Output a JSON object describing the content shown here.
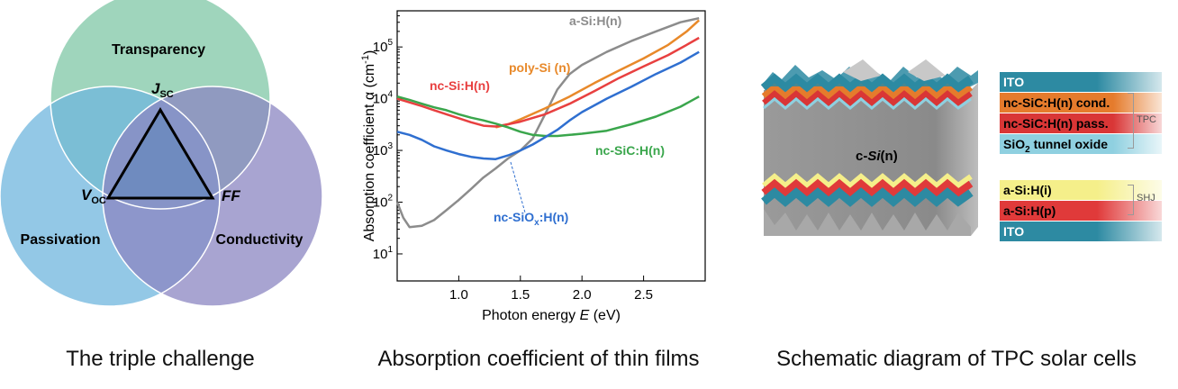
{
  "venn": {
    "circles": [
      {
        "label": "Transparency",
        "color": "#7fc7a6"
      },
      {
        "label": "Passivation",
        "color": "#6fb6dd"
      },
      {
        "label": "Conductivity",
        "color": "#8b86c2"
      }
    ],
    "vertices": {
      "top": "J",
      "top_sub": "SC",
      "left": "V",
      "left_sub": "OC",
      "right": "FF"
    },
    "caption": "The triple challenge"
  },
  "chart_data": {
    "type": "line",
    "xlabel_pre": "Photon energy ",
    "xlabel_var": "E",
    "xlabel_post": " (eV)",
    "ylabel": "Absorption coefficient α (cm",
    "ylabel_sup": "-1",
    "ylabel_end": ")",
    "xlim": [
      0.5,
      3.0
    ],
    "ylim": [
      3,
      500000
    ],
    "ylog": true,
    "xticks": [
      "1.0",
      "1.5",
      "2.0",
      "2.5"
    ],
    "xtick_values": [
      1.0,
      1.5,
      2.0,
      2.5
    ],
    "yticks": [
      {
        "value": 10,
        "base": "10",
        "exp": "1"
      },
      {
        "value": 100,
        "base": "10",
        "exp": "2"
      },
      {
        "value": 1000,
        "base": "10",
        "exp": "3"
      },
      {
        "value": 10000,
        "base": "10",
        "exp": "4"
      },
      {
        "value": 100000,
        "base": "10",
        "exp": "5"
      }
    ],
    "series": [
      {
        "name": "a-Si:H(n)",
        "color": "#8c8c8c",
        "points": [
          [
            0.5,
            100
          ],
          [
            0.55,
            50
          ],
          [
            0.6,
            33
          ],
          [
            0.7,
            35
          ],
          [
            0.8,
            45
          ],
          [
            0.9,
            70
          ],
          [
            1.0,
            110
          ],
          [
            1.1,
            180
          ],
          [
            1.2,
            300
          ],
          [
            1.3,
            450
          ],
          [
            1.4,
            700
          ],
          [
            1.5,
            1000
          ],
          [
            1.6,
            1700
          ],
          [
            1.7,
            5000
          ],
          [
            1.8,
            15000
          ],
          [
            1.9,
            30000
          ],
          [
            2.0,
            45000
          ],
          [
            2.2,
            80000
          ],
          [
            2.4,
            130000
          ],
          [
            2.6,
            200000
          ],
          [
            2.8,
            300000
          ],
          [
            2.95,
            360000
          ]
        ]
      },
      {
        "name": "poly-Si (n)",
        "color": "#e8892a",
        "points": [
          [
            1.3,
            2800
          ],
          [
            1.4,
            3200
          ],
          [
            1.5,
            4000
          ],
          [
            1.7,
            6500
          ],
          [
            1.9,
            11000
          ],
          [
            2.1,
            20000
          ],
          [
            2.3,
            35000
          ],
          [
            2.5,
            60000
          ],
          [
            2.7,
            110000
          ],
          [
            2.85,
            200000
          ],
          [
            2.95,
            330000
          ]
        ]
      },
      {
        "name": "nc-Si:H(n)",
        "color": "#e84040",
        "points": [
          [
            0.5,
            10000
          ],
          [
            0.6,
            8500
          ],
          [
            0.7,
            7200
          ],
          [
            0.8,
            6000
          ],
          [
            0.9,
            5000
          ],
          [
            1.0,
            4200
          ],
          [
            1.1,
            3500
          ],
          [
            1.2,
            3000
          ],
          [
            1.3,
            2900
          ],
          [
            1.4,
            3200
          ],
          [
            1.5,
            3600
          ],
          [
            1.7,
            5000
          ],
          [
            1.9,
            8000
          ],
          [
            2.1,
            14000
          ],
          [
            2.3,
            25000
          ],
          [
            2.5,
            42000
          ],
          [
            2.7,
            70000
          ],
          [
            2.85,
            110000
          ],
          [
            2.95,
            150000
          ]
        ]
      },
      {
        "name": "nc-SiC:H(n)",
        "color": "#3aa64c",
        "points": [
          [
            0.5,
            11000
          ],
          [
            0.6,
            9500
          ],
          [
            0.7,
            8000
          ],
          [
            0.8,
            6800
          ],
          [
            0.9,
            6000
          ],
          [
            1.0,
            5000
          ],
          [
            1.1,
            4300
          ],
          [
            1.2,
            3800
          ],
          [
            1.3,
            3300
          ],
          [
            1.4,
            2800
          ],
          [
            1.5,
            2300
          ],
          [
            1.6,
            2000
          ],
          [
            1.7,
            1900
          ],
          [
            1.8,
            1900
          ],
          [
            1.9,
            2000
          ],
          [
            2.0,
            2100
          ],
          [
            2.2,
            2400
          ],
          [
            2.4,
            3200
          ],
          [
            2.6,
            4500
          ],
          [
            2.8,
            7000
          ],
          [
            2.95,
            11000
          ]
        ]
      },
      {
        "name": "nc-SiO",
        "name_sub": "x",
        "name_post": ":H(n)",
        "color": "#2f6fd0",
        "points": [
          [
            0.5,
            2300
          ],
          [
            0.6,
            2000
          ],
          [
            0.7,
            1600
          ],
          [
            0.8,
            1200
          ],
          [
            0.9,
            1000
          ],
          [
            1.0,
            850
          ],
          [
            1.1,
            750
          ],
          [
            1.2,
            700
          ],
          [
            1.3,
            680
          ],
          [
            1.4,
            800
          ],
          [
            1.5,
            1000
          ],
          [
            1.6,
            1300
          ],
          [
            1.7,
            1800
          ],
          [
            1.8,
            2500
          ],
          [
            1.9,
            3800
          ],
          [
            2.0,
            5500
          ],
          [
            2.2,
            10000
          ],
          [
            2.4,
            17000
          ],
          [
            2.6,
            30000
          ],
          [
            2.8,
            50000
          ],
          [
            2.95,
            80000
          ]
        ]
      }
    ],
    "caption": "Absorption coefficient of thin films"
  },
  "schematic": {
    "bulk_label_pre": "c-",
    "bulk_label_it": "Si",
    "bulk_label_post": "(n)",
    "layers_top": [
      {
        "label": "ITO",
        "color": "#2d8aa2"
      },
      {
        "label": "nc-SiC:H(n) cond.",
        "color": "#e57b2c"
      },
      {
        "label": "nc-SiC:H(n) pass.",
        "color": "#d93636"
      },
      {
        "label_pre": "SiO",
        "label_sub": "2",
        "label_post": " tunnel oxide",
        "color": "#8fd0e0"
      }
    ],
    "layers_bottom": [
      {
        "label": "a-Si:H(i)",
        "color": "#f5ef8a"
      },
      {
        "label": "a-Si:H(p)",
        "color": "#e03a3a"
      },
      {
        "label": "ITO",
        "color": "#2d8aa2"
      }
    ],
    "group_top": "TPC",
    "group_bottom": "SHJ",
    "caption": "Schematic diagram of TPC solar cells"
  }
}
